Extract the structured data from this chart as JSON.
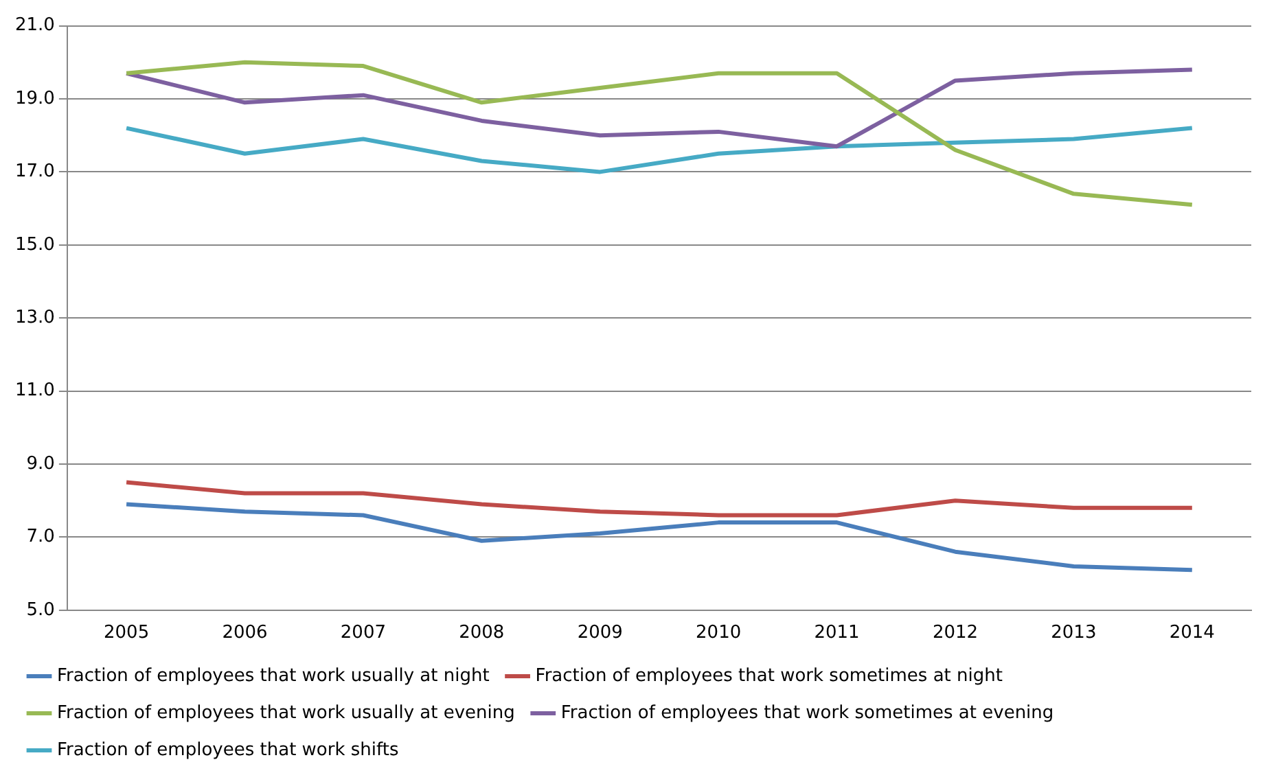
{
  "chart_data": {
    "type": "line",
    "categories": [
      "2005",
      "2006",
      "2007",
      "2008",
      "2009",
      "2010",
      "2011",
      "2012",
      "2013",
      "2014"
    ],
    "series": [
      {
        "name": "Fraction of employees that work usually at night",
        "color": "#4a7ebb",
        "values": [
          7.9,
          7.7,
          7.6,
          6.9,
          7.1,
          7.4,
          7.4,
          6.6,
          6.2,
          6.1
        ]
      },
      {
        "name": "Fraction of employees that work sometimes at night",
        "color": "#be4b48",
        "values": [
          8.5,
          8.2,
          8.2,
          7.9,
          7.7,
          7.6,
          7.6,
          8.0,
          7.8,
          7.8
        ]
      },
      {
        "name": "Fraction of employees that work usually at evening",
        "color": "#98b954",
        "values": [
          19.7,
          20.0,
          19.9,
          18.9,
          19.3,
          19.7,
          19.7,
          17.6,
          16.4,
          16.1
        ]
      },
      {
        "name": "Fraction of employees that work sometimes at evening",
        "color": "#7d60a0",
        "values": [
          19.7,
          18.9,
          19.1,
          18.4,
          18.0,
          18.1,
          17.7,
          19.5,
          19.7,
          19.8
        ]
      },
      {
        "name": "Fraction of employees that work shifts",
        "color": "#46aac5",
        "values": [
          18.2,
          17.5,
          17.9,
          17.3,
          17.0,
          17.5,
          17.7,
          17.8,
          17.9,
          18.2
        ]
      }
    ],
    "ylim": [
      5,
      21
    ],
    "yticks": [
      {
        "value": 5,
        "label": "5.0"
      },
      {
        "value": 7,
        "label": "7.0"
      },
      {
        "value": 9,
        "label": "9.0"
      },
      {
        "value": 11,
        "label": "11.0"
      },
      {
        "value": 13,
        "label": "13.0"
      },
      {
        "value": 15,
        "label": "15.0"
      },
      {
        "value": 17,
        "label": "17.0"
      },
      {
        "value": 19,
        "label": "19.0"
      },
      {
        "value": 21,
        "label": "21.0"
      }
    ],
    "grid": "y",
    "legend": "bottom",
    "marker": "none",
    "line_style": "solid"
  }
}
